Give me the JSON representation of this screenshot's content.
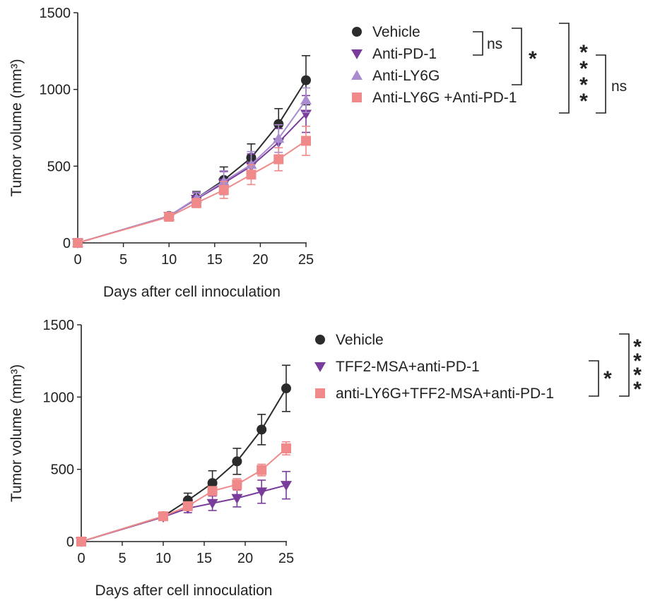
{
  "chart_data": [
    {
      "type": "line",
      "xlabel": "Days after cell innoculation",
      "ylabel": "Tumor  volume (mm³)",
      "xlim": [
        0,
        25
      ],
      "ylim": [
        0,
        1500
      ],
      "xticks": [
        "0",
        "5",
        "10",
        "15",
        "20",
        "25"
      ],
      "yticks": [
        "0",
        "500",
        "1000",
        "1500"
      ],
      "x": [
        0,
        10,
        13,
        16,
        19,
        22,
        25
      ],
      "legend_position": "right",
      "series": [
        {
          "name": "Vehicle",
          "marker": "circle",
          "color": "#2b2b2b",
          "values": [
            0,
            175,
            290,
            410,
            555,
            775,
            1060
          ],
          "errors": [
            0,
            20,
            45,
            85,
            90,
            100,
            160
          ]
        },
        {
          "name": "Anti-PD-1",
          "marker": "triangle-down",
          "color": "#7a3c9a",
          "values": [
            0,
            175,
            285,
            390,
            500,
            655,
            840
          ],
          "errors": [
            0,
            20,
            40,
            75,
            80,
            90,
            120
          ]
        },
        {
          "name": "Anti-LY6G",
          "marker": "triangle-up",
          "color": "#a98bcf",
          "values": [
            0,
            175,
            290,
            400,
            510,
            680,
            930
          ],
          "errors": [
            0,
            20,
            40,
            70,
            85,
            90,
            80
          ]
        },
        {
          "name": "Anti-LY6G +Anti-PD-1",
          "marker": "square",
          "color": "#f08a8a",
          "values": [
            0,
            170,
            260,
            345,
            445,
            545,
            665
          ],
          "errors": [
            0,
            20,
            30,
            55,
            65,
            75,
            95
          ]
        }
      ],
      "significance": [
        {
          "between": [
            "Vehicle",
            "Anti-PD-1"
          ],
          "label": "ns"
        },
        {
          "between": [
            "Vehicle",
            "Anti-LY6G"
          ],
          "label": "*"
        },
        {
          "between": [
            "Vehicle",
            "Anti-LY6G +Anti-PD-1"
          ],
          "label": "****"
        },
        {
          "between": [
            "Anti-PD-1",
            "Anti-LY6G +Anti-PD-1"
          ],
          "label": "ns"
        }
      ]
    },
    {
      "type": "line",
      "xlabel": "Days after cell innoculation",
      "ylabel": "Tumor  volume (mm³)",
      "xlim": [
        0,
        25
      ],
      "ylim": [
        0,
        1500
      ],
      "xticks": [
        "0",
        "5",
        "10",
        "15",
        "20",
        "25"
      ],
      "yticks": [
        "0",
        "500",
        "1000",
        "1500"
      ],
      "x": [
        0,
        10,
        13,
        16,
        19,
        22,
        25
      ],
      "legend_position": "right",
      "series": [
        {
          "name": "Vehicle",
          "marker": "circle",
          "color": "#2b2b2b",
          "values": [
            0,
            175,
            285,
            405,
            555,
            775,
            1060
          ],
          "errors": [
            0,
            20,
            50,
            85,
            90,
            105,
            160
          ]
        },
        {
          "name": "TFF2-MSA+anti-PD-1",
          "marker": "triangle-down",
          "color": "#7a3c9a",
          "values": [
            0,
            170,
            230,
            265,
            300,
            345,
            390
          ],
          "errors": [
            0,
            20,
            30,
            50,
            60,
            80,
            95
          ]
        },
        {
          "name": "anti-LY6G+TFF2-MSA+anti-PD-1",
          "marker": "square",
          "color": "#f08a8a",
          "values": [
            0,
            175,
            245,
            350,
            395,
            495,
            645
          ],
          "errors": [
            0,
            20,
            25,
            30,
            40,
            40,
            45
          ]
        }
      ],
      "significance": [
        {
          "between": [
            "TFF2-MSA+anti-PD-1",
            "anti-LY6G+TFF2-MSA+anti-PD-1"
          ],
          "label": "*"
        },
        {
          "between": [
            "Vehicle",
            "anti-LY6G+TFF2-MSA+anti-PD-1"
          ],
          "label": "****"
        }
      ]
    }
  ]
}
